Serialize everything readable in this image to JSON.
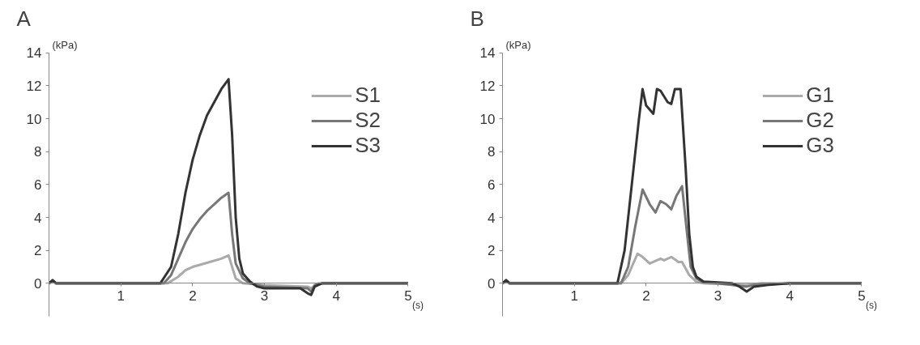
{
  "chart_data": [
    {
      "type": "line",
      "title": "A",
      "xlabel": "(s)",
      "ylabel": "(kPa)",
      "xlim": [
        0,
        5
      ],
      "ylim": [
        -2,
        14
      ],
      "xticks": [
        1,
        2,
        3,
        4,
        5
      ],
      "yticks": [
        0,
        2,
        4,
        6,
        8,
        10,
        12,
        14
      ],
      "grid": false,
      "legend": "top right",
      "marker": "none",
      "line_style": "solid",
      "series": [
        {
          "name": "S1",
          "color": "#aaaaaa",
          "x": [
            0,
            0.05,
            0.1,
            1.65,
            1.8,
            1.9,
            2.0,
            2.2,
            2.4,
            2.5,
            2.55,
            2.6,
            2.7,
            3.0,
            3.6,
            3.65,
            3.75,
            5
          ],
          "values": [
            0,
            0.1,
            0,
            0,
            0.4,
            0.8,
            1.0,
            1.25,
            1.5,
            1.7,
            1.0,
            0.3,
            0,
            -0.1,
            -0.2,
            -0.3,
            0,
            0
          ]
        },
        {
          "name": "S2",
          "color": "#777777",
          "x": [
            0,
            0.05,
            0.1,
            1.6,
            1.7,
            1.8,
            1.9,
            2.0,
            2.1,
            2.2,
            2.3,
            2.4,
            2.5,
            2.55,
            2.6,
            2.7,
            2.8,
            3.0,
            3.6,
            3.65,
            3.7,
            3.8,
            5
          ],
          "values": [
            0,
            0.15,
            0,
            0,
            0.5,
            1.5,
            2.5,
            3.3,
            3.9,
            4.4,
            4.8,
            5.2,
            5.5,
            3.0,
            1.2,
            0.3,
            0,
            -0.2,
            -0.3,
            -0.5,
            -0.1,
            0,
            0
          ]
        },
        {
          "name": "S3",
          "color": "#333333",
          "x": [
            0,
            0.05,
            0.1,
            1.55,
            1.7,
            1.8,
            1.9,
            2.0,
            2.1,
            2.2,
            2.3,
            2.4,
            2.5,
            2.55,
            2.6,
            2.65,
            2.7,
            2.8,
            2.9,
            3.0,
            3.5,
            3.6,
            3.65,
            3.7,
            3.8,
            5
          ],
          "values": [
            0,
            0.2,
            0,
            0,
            1.0,
            3.0,
            5.5,
            7.5,
            9.0,
            10.2,
            11.0,
            11.8,
            12.4,
            9.0,
            4.0,
            1.5,
            0.6,
            0.1,
            -0.2,
            -0.3,
            -0.3,
            -0.6,
            -0.7,
            -0.2,
            0,
            0
          ]
        }
      ]
    },
    {
      "type": "line",
      "title": "B",
      "xlabel": "(s)",
      "ylabel": "(kPa)",
      "xlim": [
        0,
        5
      ],
      "ylim": [
        -2,
        14
      ],
      "xticks": [
        1,
        2,
        3,
        4,
        5
      ],
      "yticks": [
        0,
        2,
        4,
        6,
        8,
        10,
        12,
        14
      ],
      "grid": false,
      "legend": "top right",
      "marker": "none",
      "line_style": "solid",
      "series": [
        {
          "name": "G1",
          "color": "#aaaaaa",
          "x": [
            0,
            0.05,
            0.1,
            1.65,
            1.75,
            1.88,
            1.95,
            2.05,
            2.15,
            2.2,
            2.25,
            2.35,
            2.45,
            2.5,
            2.6,
            2.7,
            2.8,
            3.4,
            3.6,
            5
          ],
          "values": [
            0,
            0.1,
            0,
            0,
            0.5,
            1.8,
            1.6,
            1.2,
            1.4,
            1.5,
            1.4,
            1.6,
            1.3,
            1.3,
            0.5,
            0.1,
            0,
            -0.1,
            0,
            0
          ]
        },
        {
          "name": "G2",
          "color": "#777777",
          "x": [
            0,
            0.05,
            0.1,
            1.65,
            1.75,
            1.85,
            1.95,
            2.05,
            2.13,
            2.2,
            2.28,
            2.35,
            2.42,
            2.5,
            2.57,
            2.62,
            2.7,
            2.8,
            3.0,
            3.4,
            3.5,
            4.0,
            5
          ],
          "values": [
            0,
            0.15,
            0,
            0,
            1.0,
            3.5,
            5.7,
            4.8,
            4.3,
            5.0,
            4.8,
            4.5,
            5.3,
            5.9,
            3.0,
            1.0,
            0.3,
            0.05,
            0,
            -0.2,
            -0.1,
            0,
            0
          ]
        },
        {
          "name": "G3",
          "color": "#333333",
          "x": [
            0,
            0.05,
            0.1,
            1.6,
            1.7,
            1.8,
            1.9,
            1.95,
            2.0,
            2.1,
            2.15,
            2.2,
            2.3,
            2.35,
            2.4,
            2.48,
            2.55,
            2.6,
            2.65,
            2.7,
            2.8,
            3.0,
            3.2,
            3.3,
            3.4,
            3.5,
            3.7,
            4.0,
            5
          ],
          "values": [
            0,
            0.2,
            0,
            0,
            2.0,
            6.0,
            10.0,
            11.8,
            10.8,
            10.3,
            11.8,
            11.7,
            11.0,
            10.9,
            11.8,
            11.8,
            7.0,
            3.0,
            1.0,
            0.4,
            0.1,
            0.05,
            0,
            -0.2,
            -0.5,
            -0.2,
            -0.1,
            0,
            0
          ]
        }
      ]
    }
  ]
}
